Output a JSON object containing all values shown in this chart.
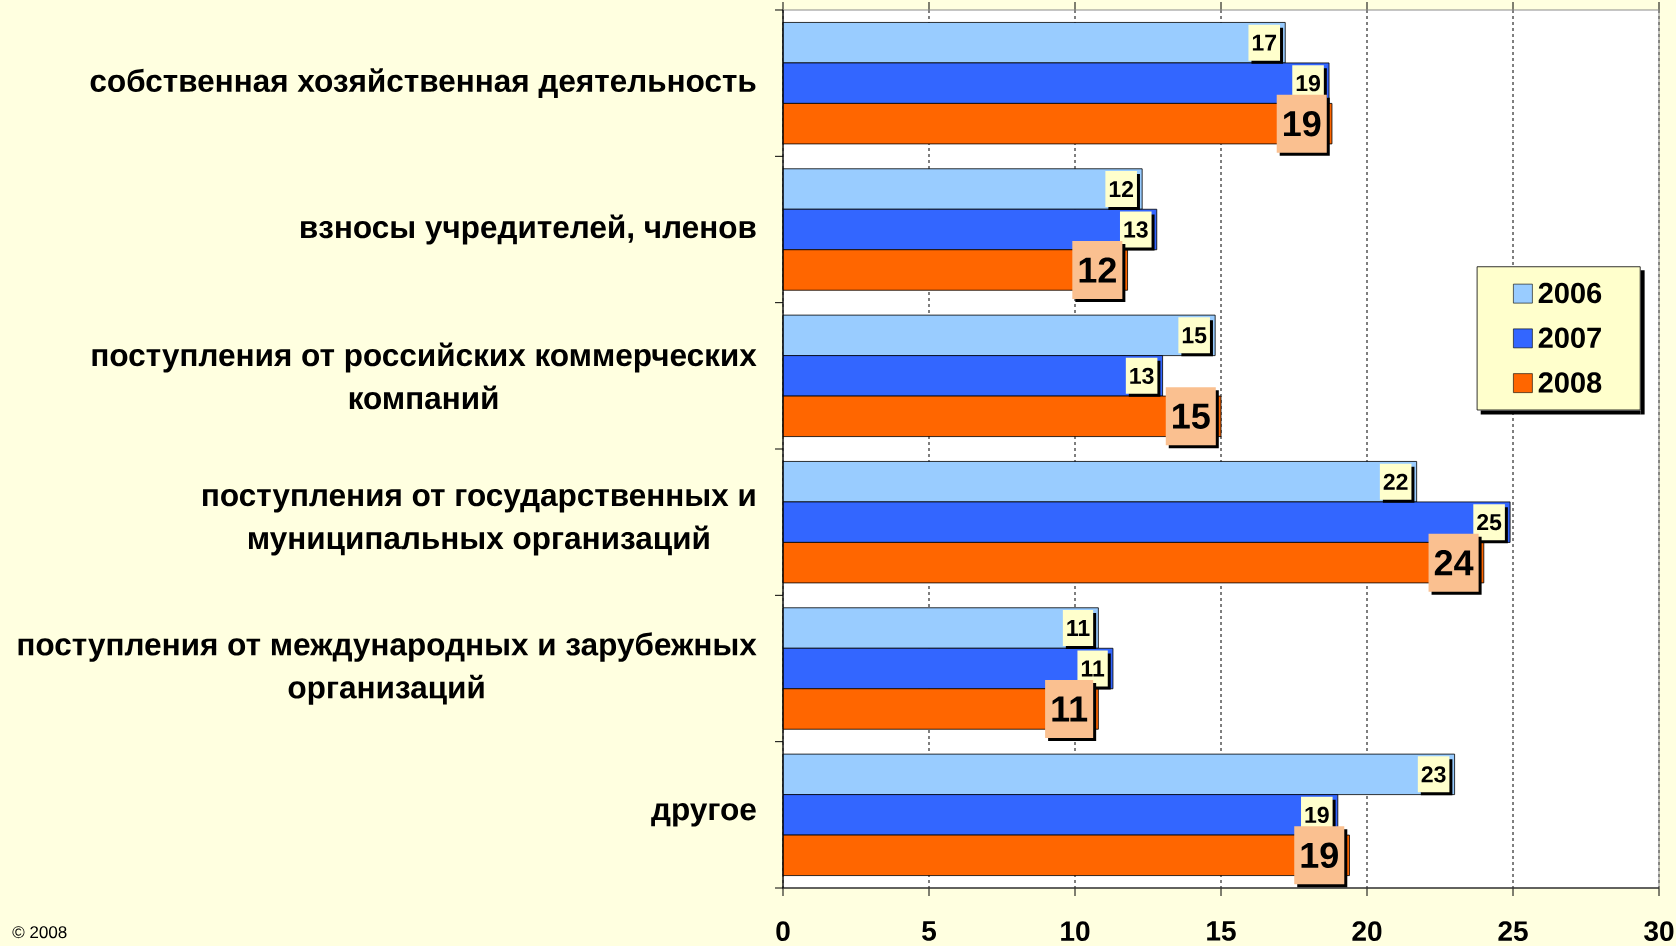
{
  "chart_data": {
    "type": "bar",
    "orientation": "horizontal",
    "categories": [
      "собственная хозяйственная деятельность",
      "взносы учредителей, членов",
      "поступления от российских коммерческих компаний",
      "поступления от государственных и муниципальных организаций",
      "поступления от международных и зарубежных организаций",
      "другое"
    ],
    "series": [
      {
        "name": "2006",
        "color": "#99ccff",
        "values": [
          17.2,
          12.3,
          14.8,
          21.7,
          10.8,
          23.0
        ],
        "value_labels": [
          "17",
          "12",
          "15",
          "22",
          "11",
          "23"
        ]
      },
      {
        "name": "2007",
        "color": "#3366ff",
        "values": [
          18.7,
          12.8,
          13.0,
          24.9,
          11.3,
          19.0
        ],
        "value_labels": [
          "19",
          "13",
          "13",
          "25",
          "11",
          "19"
        ]
      },
      {
        "name": "2008",
        "color": "#ff6600",
        "values": [
          18.8,
          11.8,
          15.0,
          24.0,
          10.8,
          19.4
        ],
        "value_labels": [
          "19",
          "12",
          "15",
          "24",
          "11",
          "19"
        ]
      }
    ],
    "xlim": [
      0,
      30
    ],
    "xticks": [
      0,
      5,
      10,
      15,
      20,
      25,
      30
    ],
    "grid": "x",
    "legend": "right",
    "annotations": [
      "© 2008"
    ]
  }
}
